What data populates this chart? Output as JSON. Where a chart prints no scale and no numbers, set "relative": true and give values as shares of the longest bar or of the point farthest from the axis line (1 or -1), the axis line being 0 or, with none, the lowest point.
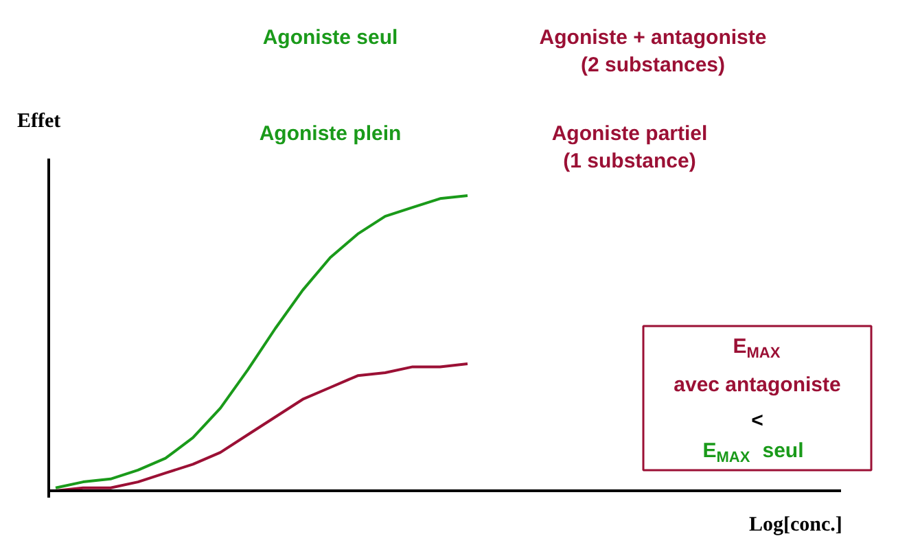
{
  "chart_data": {
    "type": "line",
    "relative": true,
    "ylabel": "Effet",
    "grid": false,
    "marker": "none",
    "line_style": "solid",
    "categories": [
      null,
      null,
      null,
      null,
      null,
      null,
      null,
      null,
      null,
      null,
      null,
      null,
      null,
      null,
      null,
      null
    ],
    "series": [
      {
        "name": "Agoniste seul",
        "color": "#1a9a1a",
        "values": [
          0.01,
          0.03,
          0.04,
          0.07,
          0.11,
          0.18,
          0.28,
          0.41,
          0.55,
          0.68,
          0.79,
          0.87,
          0.93,
          0.96,
          0.99,
          1
        ]
      },
      {
        "name": "Agoniste + antagoniste (2 substances)",
        "color": "#9b1035",
        "values": [
          0,
          0.01,
          0.01,
          0.03,
          0.06,
          0.09,
          0.13,
          0.19,
          0.25,
          0.31,
          0.35,
          0.39,
          0.4,
          0.42,
          0.42,
          0.43
        ]
      }
    ],
    "annotations": [
      "Agoniste plein",
      "Agoniste partiel (1 substance)",
      "E$_{MAX}$ avec antagoniste",
      "<",
      "E$_{MAX}$ seul",
      "Log[conc.]"
    ]
  }
}
